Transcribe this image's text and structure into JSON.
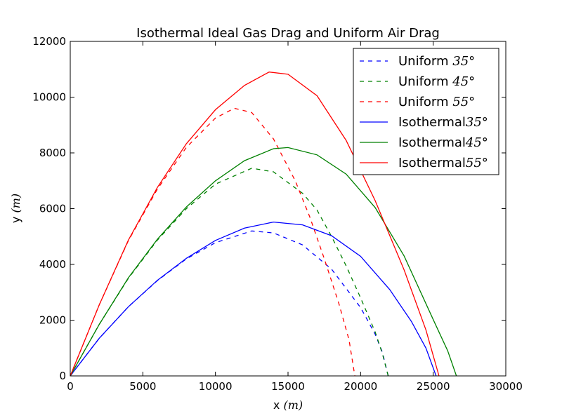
{
  "chart_data": {
    "type": "line",
    "title": "Isothermal Ideal Gas Drag and Uniform Air Drag",
    "xlabel": "x",
    "xlabel_unit": "(m)",
    "ylabel": "y",
    "ylabel_unit": "(m)",
    "xlim": [
      0,
      30000
    ],
    "ylim": [
      0,
      12000
    ],
    "xticks": [
      0,
      5000,
      10000,
      15000,
      20000,
      25000,
      30000
    ],
    "yticks": [
      0,
      2000,
      4000,
      6000,
      8000,
      10000,
      12000
    ],
    "legend_position": "top-right",
    "grid": false,
    "series": [
      {
        "name": "Uniform 35°",
        "label_text": "Uniform",
        "label_math": "35°",
        "color": "#0000ff",
        "style": "dashed",
        "x": [
          0,
          2000,
          4000,
          6000,
          8000,
          10000,
          12500,
          14000,
          16000,
          18000,
          20000,
          21000,
          21500,
          21900
        ],
        "y": [
          0,
          1350,
          2480,
          3420,
          4200,
          4780,
          5200,
          5130,
          4700,
          3830,
          2450,
          1500,
          850,
          0
        ]
      },
      {
        "name": "Uniform 45°",
        "label_text": "Uniform",
        "label_math": "45°",
        "color": "#008000",
        "style": "dashed",
        "x": [
          0,
          2000,
          4000,
          6000,
          8000,
          10000,
          12500,
          14000,
          16000,
          17000,
          18000,
          19000,
          20000,
          21000,
          21500,
          21900
        ],
        "y": [
          0,
          1850,
          3500,
          4870,
          6000,
          6880,
          7450,
          7320,
          6550,
          5950,
          5000,
          3950,
          2800,
          1580,
          800,
          0
        ]
      },
      {
        "name": "Uniform 55°",
        "label_text": "Uniform",
        "label_math": "55°",
        "color": "#ff0000",
        "style": "dashed",
        "x": [
          0,
          2000,
          4000,
          6000,
          8000,
          10000,
          11300,
          12500,
          14000,
          15500,
          16500,
          17500,
          18500,
          19200,
          19600
        ],
        "y": [
          0,
          2550,
          4850,
          6700,
          8200,
          9250,
          9600,
          9450,
          8500,
          7000,
          5700,
          4200,
          2600,
          1300,
          0
        ]
      },
      {
        "name": "Isothermal 35°",
        "label_text": "Isothermal",
        "label_math": "35°",
        "color": "#0000ff",
        "style": "solid",
        "x": [
          0,
          2000,
          4000,
          6000,
          8000,
          10000,
          12000,
          14000,
          16000,
          18000,
          20000,
          22000,
          23500,
          24500,
          25200
        ],
        "y": [
          0,
          1350,
          2480,
          3430,
          4220,
          4860,
          5300,
          5520,
          5420,
          5030,
          4290,
          3100,
          1950,
          1000,
          0
        ]
      },
      {
        "name": "Isothermal 45°",
        "label_text": "Isothermal",
        "label_math": "45°",
        "color": "#008000",
        "style": "solid",
        "x": [
          0,
          2000,
          4000,
          6000,
          8000,
          10000,
          12000,
          14000,
          15000,
          17000,
          19000,
          21000,
          23000,
          25000,
          26000,
          26600
        ],
        "y": [
          0,
          1850,
          3520,
          4900,
          6060,
          7000,
          7720,
          8150,
          8190,
          7930,
          7240,
          6040,
          4300,
          2020,
          900,
          0
        ]
      },
      {
        "name": "Isothermal 55°",
        "label_text": "Isothermal",
        "label_math": "55°",
        "color": "#ff0000",
        "style": "solid",
        "x": [
          0,
          2000,
          4000,
          6000,
          8000,
          10000,
          12000,
          13700,
          15000,
          17000,
          19000,
          21000,
          23000,
          24500,
          25400
        ],
        "y": [
          0,
          2550,
          4870,
          6760,
          8330,
          9550,
          10420,
          10900,
          10820,
          10050,
          8450,
          6290,
          3800,
          1650,
          0
        ]
      }
    ]
  }
}
